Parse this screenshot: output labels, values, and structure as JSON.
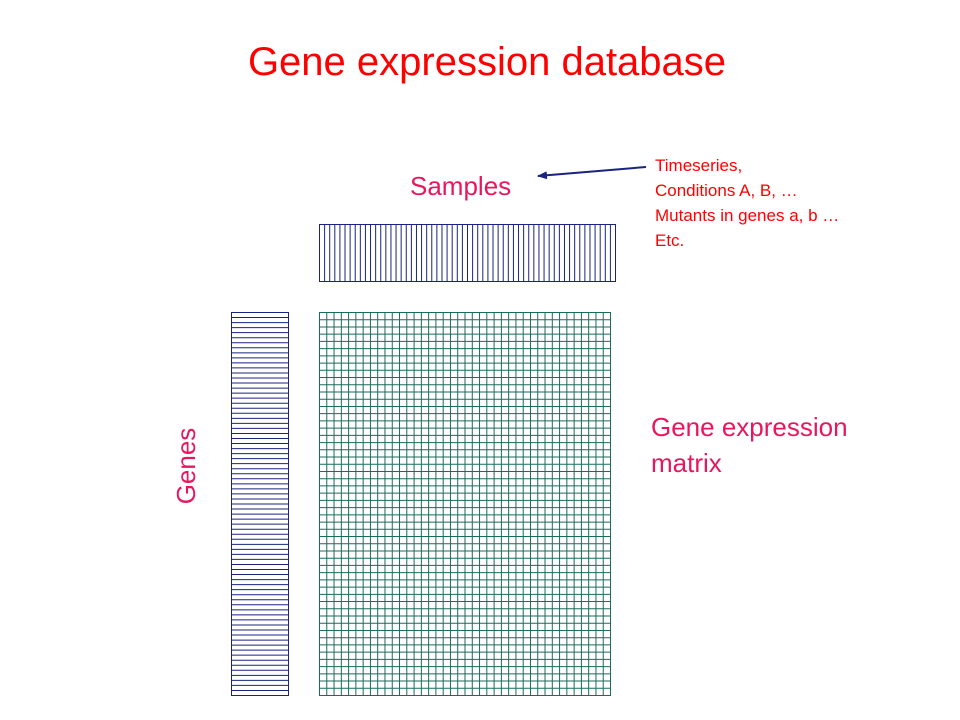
{
  "title": "Gene expression database",
  "samples_label": "Samples",
  "sample_notes": [
    "Timeseries,",
    "Conditions A, B, …",
    "Mutants in genes a, b …",
    "Etc."
  ],
  "genes_label": "Genes",
  "matrix_label": [
    "Gene expression",
    "matrix"
  ],
  "colors": {
    "title": "#ff0000",
    "labels": "#e8175d",
    "notes": "#ff0000",
    "arrow": "#1a237e",
    "strip_lines": "#1a237e",
    "matrix_grid": "#1b6b5a"
  }
}
